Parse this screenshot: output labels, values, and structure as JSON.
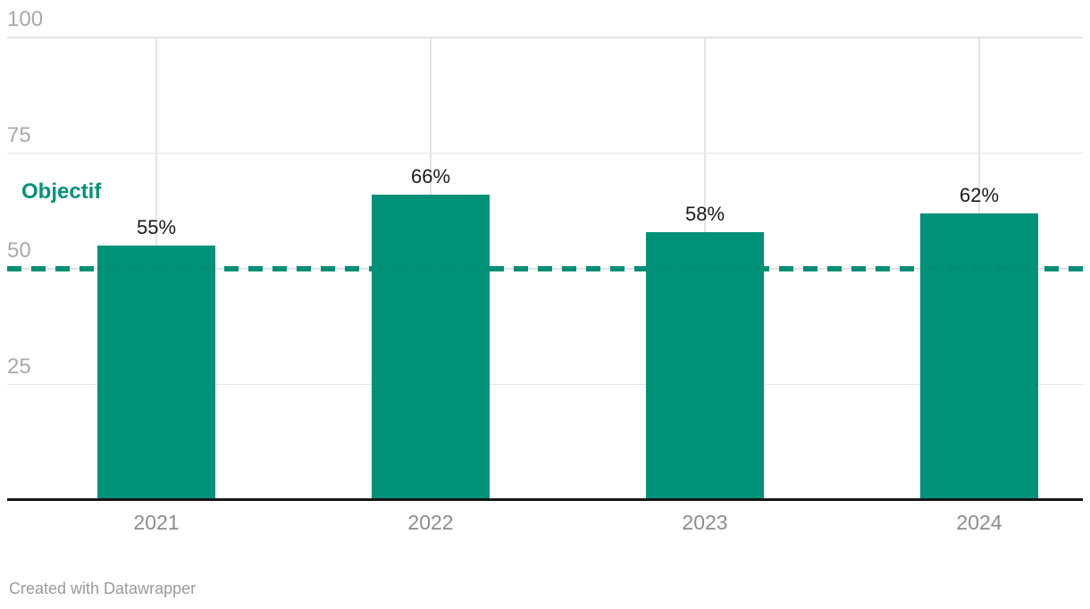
{
  "chart_data": {
    "type": "bar",
    "title": "",
    "categories": [
      "2021",
      "2022",
      "2023",
      "2024"
    ],
    "values": [
      55,
      66,
      58,
      62
    ],
    "value_labels": [
      "55%",
      "66%",
      "58%",
      "62%"
    ],
    "ylim": [
      0,
      100
    ],
    "yticks": [
      100,
      75,
      50,
      25
    ],
    "ytick_labels": [
      "100",
      "75",
      "50",
      "25"
    ],
    "grid": true,
    "legend": "none",
    "reference_line": {
      "label": "Objectif",
      "value": 50,
      "style": "dashed"
    },
    "colors": {
      "bar": "#009278",
      "reference_line": "#008f76",
      "reference_label": "#009278",
      "grid": "#e4e4e4",
      "baseline": "#161616",
      "value_label": "#1a1a1a",
      "axis_tick": "#a9a9a9",
      "category_label": "#8c8c8c"
    }
  },
  "footer": {
    "attribution": "Created with Datawrapper"
  }
}
